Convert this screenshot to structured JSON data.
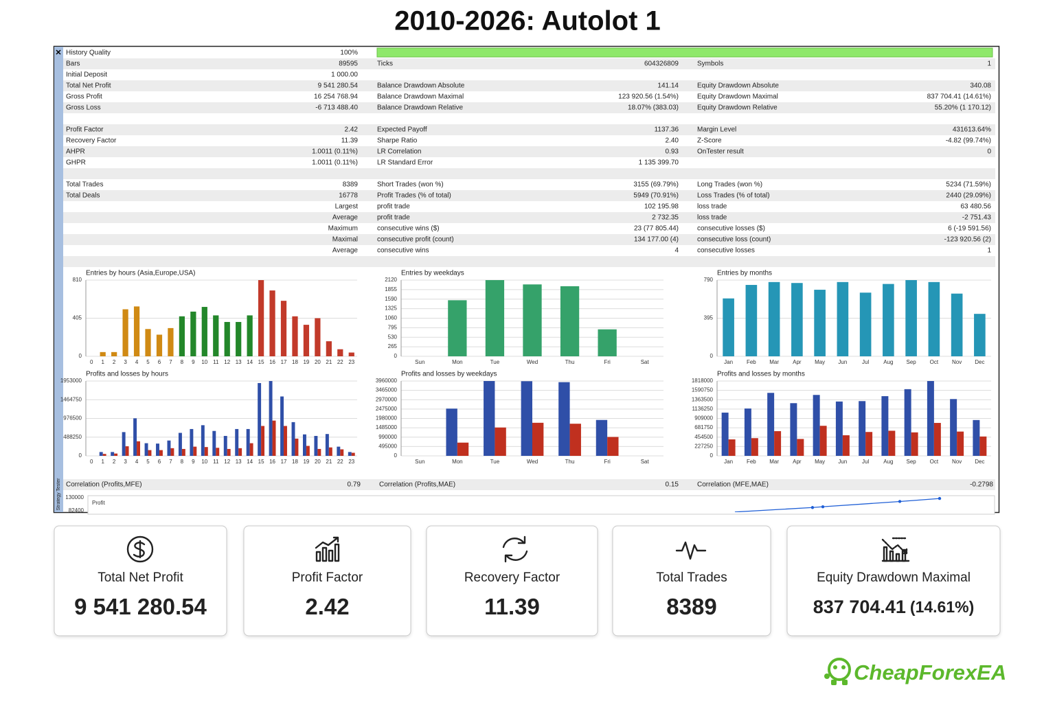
{
  "title": "2010-2026: Autolot 1",
  "side_label": "Strategy Tester",
  "report": {
    "rows": [
      [
        "History Quality",
        "100%"
      ],
      [
        "Bars",
        "89595",
        "Ticks",
        "604326809",
        "Symbols",
        "1"
      ],
      [
        "Initial Deposit",
        "1 000.00"
      ],
      [
        "Total Net Profit",
        "9 541 280.54",
        "Balance Drawdown Absolute",
        "141.14",
        "Equity Drawdown Absolute",
        "340.08"
      ],
      [
        "Gross Profit",
        "16 254 768.94",
        "Balance Drawdown Maximal",
        "123 920.56 (1.54%)",
        "Equity Drawdown Maximal",
        "837 704.41 (14.61%)"
      ],
      [
        "Gross Loss",
        "-6 713 488.40",
        "Balance Drawdown Relative",
        "18.07% (383.03)",
        "Equity Drawdown Relative",
        "55.20% (1 170.12)"
      ],
      [],
      [
        "Profit Factor",
        "2.42",
        "Expected Payoff",
        "1137.36",
        "Margin Level",
        "431613.64%"
      ],
      [
        "Recovery Factor",
        "11.39",
        "Sharpe Ratio",
        "2.40",
        "Z-Score",
        "-4.82 (99.74%)"
      ],
      [
        "AHPR",
        "1.0011 (0.11%)",
        "LR Correlation",
        "0.93",
        "OnTester result",
        "0"
      ],
      [
        "GHPR",
        "1.0011 (0.11%)",
        "LR Standard Error",
        "1 135 399.70"
      ],
      [],
      [
        "Total Trades",
        "8389",
        "Short Trades (won %)",
        "3155 (69.79%)",
        "Long Trades (won %)",
        "5234 (71.59%)"
      ],
      [
        "Total Deals",
        "16778",
        "Profit Trades (% of total)",
        "5949 (70.91%)",
        "Loss Trades (% of total)",
        "2440 (29.09%)"
      ],
      [
        null,
        "Largest",
        "profit trade",
        "102 195.98",
        "loss trade",
        "63 480.56"
      ],
      [
        null,
        "Average",
        "profit trade",
        "2 732.35",
        "loss trade",
        "-2 751.43"
      ],
      [
        null,
        "Maximum",
        "consecutive wins ($)",
        "23 (77 805.44)",
        "consecutive losses ($)",
        "6 (-19 591.56)"
      ],
      [
        null,
        "Maximal",
        "consecutive profit (count)",
        "134 177.00 (4)",
        "consecutive loss (count)",
        "-123 920.56 (2)"
      ],
      [
        null,
        "Average",
        "consecutive wins",
        "4",
        "consecutive losses",
        "1"
      ],
      []
    ],
    "correlation": [
      "Correlation (Profits,MFE)",
      "0.79",
      "Correlation (Profits,MAE)",
      "0.15",
      "Correlation (MFE,MAE)",
      "-0.2798"
    ]
  },
  "chart_data": [
    {
      "type": "bar",
      "title": "Entries by hours (Asia,Europe,USA)",
      "categories": [
        "0",
        "1",
        "2",
        "3",
        "4",
        "5",
        "6",
        "7",
        "8",
        "9",
        "10",
        "11",
        "12",
        "13",
        "14",
        "15",
        "16",
        "17",
        "18",
        "19",
        "20",
        "21",
        "22",
        "23"
      ],
      "values": [
        0,
        45,
        45,
        500,
        530,
        290,
        230,
        300,
        425,
        475,
        525,
        435,
        365,
        365,
        435,
        810,
        700,
        590,
        425,
        335,
        405,
        160,
        75,
        40
      ],
      "colors": [
        "#d08a14",
        "#d08a14",
        "#d08a14",
        "#d08a14",
        "#d08a14",
        "#d08a14",
        "#d08a14",
        "#d08a14",
        "#23872a",
        "#23872a",
        "#23872a",
        "#23872a",
        "#23872a",
        "#23872a",
        "#23872a",
        "#c23a2a",
        "#c23a2a",
        "#c23a2a",
        "#c23a2a",
        "#c23a2a",
        "#c23a2a",
        "#c23a2a",
        "#c23a2a",
        "#c23a2a"
      ],
      "ylim": [
        0,
        810
      ],
      "yticks": [
        0,
        405,
        810
      ],
      "grid": true
    },
    {
      "type": "bar",
      "title": "Entries by weekdays",
      "categories": [
        "Sun",
        "Mon",
        "Tue",
        "Wed",
        "Thu",
        "Fri",
        "Sat"
      ],
      "values": [
        0,
        1560,
        2120,
        2000,
        1950,
        750,
        0
      ],
      "color": "#35a26a",
      "ylim": [
        0,
        2120
      ],
      "yticks": [
        0,
        265,
        530,
        795,
        1060,
        1325,
        1590,
        1855,
        2120
      ],
      "grid": true
    },
    {
      "type": "bar",
      "title": "Entries by months",
      "categories": [
        "Jan",
        "Feb",
        "Mar",
        "Apr",
        "May",
        "Jun",
        "Jul",
        "Aug",
        "Sep",
        "Oct",
        "Nov",
        "Dec"
      ],
      "values": [
        600,
        740,
        770,
        760,
        690,
        770,
        660,
        750,
        790,
        770,
        650,
        440
      ],
      "color": "#2596b6",
      "ylim": [
        0,
        790
      ],
      "yticks": [
        0,
        395,
        790
      ],
      "grid": true
    },
    {
      "type": "bar",
      "title": "Profits and losses by hours",
      "categories": [
        "0",
        "1",
        "2",
        "3",
        "4",
        "5",
        "6",
        "7",
        "8",
        "9",
        "10",
        "11",
        "12",
        "13",
        "14",
        "15",
        "16",
        "17",
        "18",
        "19",
        "20",
        "21",
        "22",
        "23"
      ],
      "series": [
        {
          "color": "#2f4fa8",
          "values": [
            0,
            100000,
            100000,
            620000,
            980000,
            330000,
            320000,
            400000,
            600000,
            700000,
            800000,
            650000,
            520000,
            700000,
            700000,
            1900000,
            1953000,
            1550000,
            880000,
            560000,
            520000,
            570000,
            240000,
            100000
          ]
        },
        {
          "color": "#c0301f",
          "values": [
            0,
            50000,
            60000,
            250000,
            380000,
            150000,
            150000,
            200000,
            180000,
            240000,
            230000,
            210000,
            180000,
            200000,
            330000,
            780000,
            920000,
            780000,
            450000,
            260000,
            180000,
            220000,
            170000,
            80000
          ]
        }
      ],
      "ylim": [
        0,
        1953000
      ],
      "yticks": [
        0,
        488250,
        976500,
        1464750,
        1953000
      ],
      "grid": true
    },
    {
      "type": "bar",
      "title": "Profits and losses by weekdays",
      "categories": [
        "Sun",
        "Mon",
        "Tue",
        "Wed",
        "Thu",
        "Fri",
        "Sat"
      ],
      "series": [
        {
          "color": "#2f4fa8",
          "values": [
            0,
            2500000,
            3960000,
            3950000,
            3900000,
            1900000,
            0
          ]
        },
        {
          "color": "#c0301f",
          "values": [
            0,
            700000,
            1500000,
            1750000,
            1700000,
            1000000,
            0
          ]
        }
      ],
      "ylim": [
        0,
        3960000
      ],
      "yticks": [
        0,
        495000,
        990000,
        1485000,
        1980000,
        2475000,
        2970000,
        3465000,
        3960000
      ],
      "grid": true
    },
    {
      "type": "bar",
      "title": "Profits and losses by months",
      "categories": [
        "Jan",
        "Feb",
        "Mar",
        "Apr",
        "May",
        "Jun",
        "Jul",
        "Aug",
        "Sep",
        "Oct",
        "Nov",
        "Dec"
      ],
      "series": [
        {
          "color": "#2f4fa8",
          "values": [
            1050000,
            1150000,
            1530000,
            1280000,
            1480000,
            1320000,
            1330000,
            1450000,
            1620000,
            1818000,
            1380000,
            870000
          ]
        },
        {
          "color": "#c0301f",
          "values": [
            400000,
            430000,
            600000,
            410000,
            730000,
            500000,
            580000,
            610000,
            570000,
            800000,
            590000,
            470000
          ]
        }
      ],
      "ylim": [
        0,
        1818000
      ],
      "yticks": [
        0,
        227250,
        454500,
        681750,
        909000,
        1136250,
        1363500,
        1590750,
        1818000
      ],
      "grid": true
    },
    {
      "type": "line",
      "title": "Profit",
      "x": [
        7136,
        7992,
        8106,
        8955,
        9394
      ],
      "values": [
        77000,
        93600,
        96400,
        116000,
        127200
      ],
      "color": "#1f5fd6",
      "xlim": [
        0,
        10000
      ],
      "ylim": [
        76400,
        130000
      ],
      "yticks": [
        82400,
        130000
      ],
      "grid": false
    }
  ],
  "cards": [
    {
      "label": "Total Net Profit",
      "value": "9 541 280.54"
    },
    {
      "label": "Profit Factor",
      "value": "2.42"
    },
    {
      "label": "Recovery Factor",
      "value": "11.39"
    },
    {
      "label": "Total Trades",
      "value": "8389"
    },
    {
      "label": "Equity Drawdown Maximal",
      "value": "837 704.41",
      "value_note": "(14.61%)"
    }
  ],
  "logo": "CheapForexEA"
}
